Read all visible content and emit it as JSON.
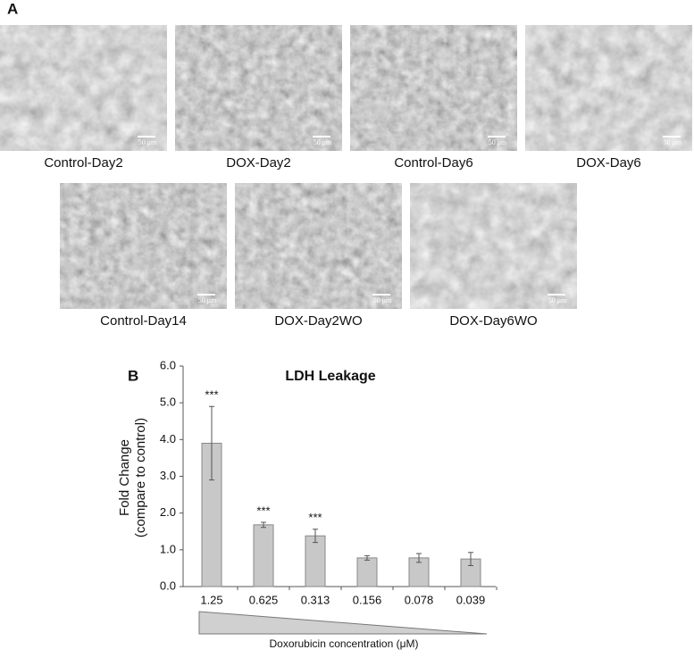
{
  "panel_a": {
    "label": "A",
    "images": [
      {
        "caption": "Control-Day2",
        "scale_bar": "50 μm"
      },
      {
        "caption": "DOX-Day2",
        "scale_bar": "50 μm"
      },
      {
        "caption": "Control-Day6",
        "scale_bar": "50 μm"
      },
      {
        "caption": "DOX-Day6",
        "scale_bar": "50 μm"
      },
      {
        "caption": "Control-Day14",
        "scale_bar": "50 μm"
      },
      {
        "caption": "DOX-Day2WO",
        "scale_bar": "50 μm"
      },
      {
        "caption": "DOX-Day6WO",
        "scale_bar": "50 μm"
      }
    ]
  },
  "panel_b": {
    "label": "B"
  },
  "chart_data": {
    "type": "bar",
    "title": "LDH Leakage",
    "y_label": [
      "Fold  Change",
      "(compare to control)"
    ],
    "x_label": "Doxorubicin concentration (μM)",
    "categories": [
      "1.25",
      "0.625",
      "0.313",
      "0.156",
      "0.078",
      "0.039"
    ],
    "values": [
      3.9,
      1.68,
      1.38,
      0.78,
      0.78,
      0.75
    ],
    "errors": [
      1.0,
      0.07,
      0.18,
      0.06,
      0.12,
      0.18
    ],
    "significance": [
      "***",
      "***",
      "***",
      null,
      null,
      null
    ],
    "color": "#c8c8c8",
    "ylim": [
      0,
      6
    ],
    "yticks": [
      {
        "value": 0,
        "label": "0.0"
      },
      {
        "value": 1,
        "label": "1.0"
      },
      {
        "value": 2,
        "label": "2.0"
      },
      {
        "value": 3,
        "label": "3.0"
      },
      {
        "value": 4,
        "label": "4.0"
      },
      {
        "value": 5,
        "label": "5.0"
      },
      {
        "value": 6,
        "label": "6.0"
      }
    ],
    "grid": false
  }
}
